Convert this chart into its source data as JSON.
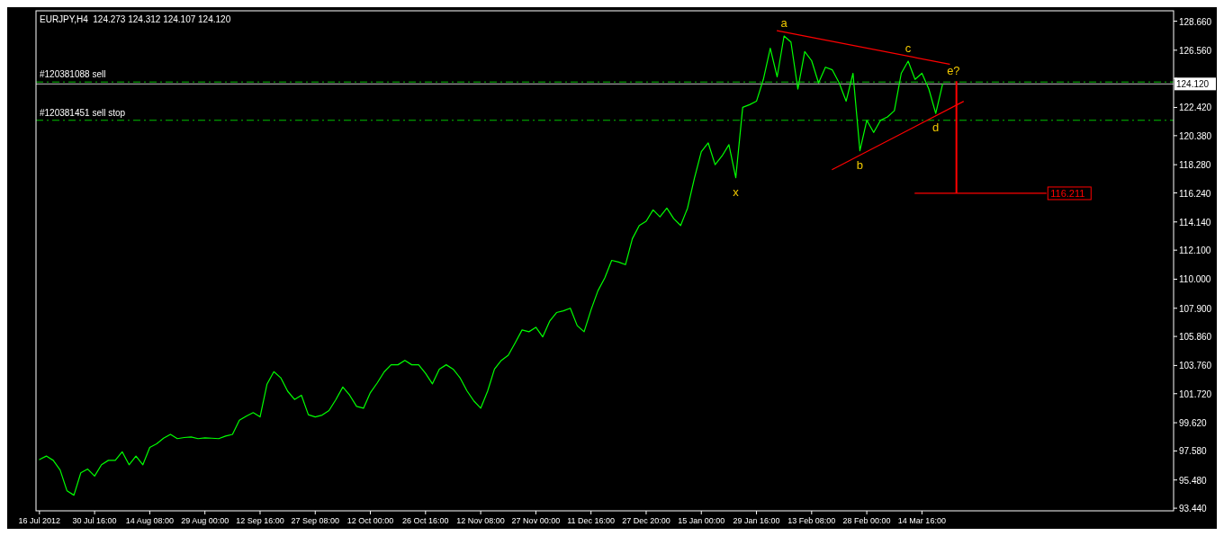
{
  "chart_data": {
    "type": "line",
    "title": "EURJPY,H4  124.273 124.312 124.107 124.120",
    "categories": [
      "16 Jul 2012",
      null,
      null,
      null,
      null,
      null,
      null,
      null,
      "30 Jul 16:00",
      null,
      null,
      null,
      null,
      null,
      null,
      null,
      "14 Aug 08:00",
      null,
      null,
      null,
      null,
      null,
      null,
      null,
      "29 Aug 00:00",
      null,
      null,
      null,
      null,
      null,
      null,
      null,
      "12 Sep 16:00",
      null,
      null,
      null,
      null,
      null,
      null,
      null,
      "27 Sep 08:00",
      null,
      null,
      null,
      null,
      null,
      null,
      null,
      "12 Oct 00:00",
      null,
      null,
      null,
      null,
      null,
      null,
      null,
      "26 Oct 16:00",
      null,
      null,
      null,
      null,
      null,
      null,
      null,
      "12 Nov 08:00",
      null,
      null,
      null,
      null,
      null,
      null,
      null,
      "27 Nov 00:00",
      null,
      null,
      null,
      null,
      null,
      null,
      null,
      "11 Dec 16:00",
      null,
      null,
      null,
      null,
      null,
      null,
      null,
      "27 Dec 20:00",
      null,
      null,
      null,
      null,
      null,
      null,
      null,
      "15 Jan 00:00",
      null,
      null,
      null,
      null,
      null,
      null,
      null,
      "29 Jan 16:00",
      null,
      null,
      null,
      null,
      null,
      null,
      null,
      "13 Feb 08:00",
      null,
      null,
      null,
      null,
      null,
      null,
      null,
      "28 Feb 00:00",
      null,
      null,
      null,
      null,
      null,
      null,
      null,
      "14 Mar 16:00",
      null,
      null,
      null,
      null,
      null,
      null,
      null,
      null,
      null,
      null,
      null,
      null,
      null,
      null,
      null,
      null,
      null,
      null,
      null,
      null,
      null,
      null,
      null,
      null,
      null,
      null,
      null,
      null,
      null,
      null,
      null,
      null,
      null,
      null,
      null,
      null
    ],
    "ylim": [
      93.25,
      129.41
    ],
    "yticks": [
      {
        "value": 93.44,
        "label": "93.440"
      },
      {
        "value": 95.48,
        "label": "95.480"
      },
      {
        "value": 97.58,
        "label": "97.580"
      },
      {
        "value": 99.62,
        "label": "99.620"
      },
      {
        "value": 101.72,
        "label": "101.720"
      },
      {
        "value": 103.76,
        "label": "103.760"
      },
      {
        "value": 105.86,
        "label": "105.860"
      },
      {
        "value": 107.9,
        "label": "107.900"
      },
      {
        "value": 110,
        "label": "110.000"
      },
      {
        "value": 112.1,
        "label": "112.100"
      },
      {
        "value": 114.14,
        "label": "114.140"
      },
      {
        "value": 116.24,
        "label": "116.240"
      },
      {
        "value": 118.28,
        "label": "118.280"
      },
      {
        "value": 120.38,
        "label": "120.380"
      },
      {
        "value": 122.42,
        "label": "122.420"
      },
      {
        "value": 124.52,
        "label": null
      },
      {
        "value": 126.56,
        "label": "126.560"
      },
      {
        "value": 128.66,
        "label": "128.660"
      }
    ],
    "series": [
      {
        "color": "#00ff00",
        "values": [
          96.96,
          97.21,
          96.9,
          96.2,
          94.69,
          94.38,
          96.0,
          96.27,
          95.76,
          96.58,
          96.9,
          96.9,
          97.52,
          96.58,
          97.21,
          96.58,
          97.84,
          98.1,
          98.5,
          98.78,
          98.47,
          98.55,
          98.59,
          98.47,
          98.53,
          98.5,
          98.47,
          98.66,
          98.78,
          99.8,
          100.1,
          100.35,
          100.04,
          102.4,
          103.31,
          102.87,
          101.9,
          101.3,
          101.61,
          100.2,
          100.04,
          100.17,
          100.5,
          101.3,
          102.2,
          101.61,
          100.8,
          100.67,
          101.8,
          102.5,
          103.3,
          103.81,
          103.81,
          104.13,
          103.81,
          103.81,
          103.19,
          102.43,
          103.5,
          103.81,
          103.5,
          102.87,
          101.93,
          101.2,
          100.67,
          101.9,
          103.5,
          104.13,
          104.5,
          105.4,
          106.33,
          106.2,
          106.52,
          105.83,
          106.96,
          107.59,
          107.71,
          107.9,
          106.64,
          106.2,
          107.78,
          109.16,
          110.1,
          111.36,
          111.24,
          111.05,
          112.93,
          113.88,
          114.19,
          115.01,
          114.51,
          115.14,
          114.38,
          113.88,
          115.14,
          117.3,
          119.22,
          119.85,
          118.28,
          118.91,
          119.73,
          117.34,
          122.43,
          122.62,
          122.87,
          124.45,
          126.71,
          124.63,
          127.59,
          127.15,
          123.75,
          126.46,
          125.8,
          124.19,
          125.33,
          125.14,
          124.19,
          122.87,
          124.89,
          119.29,
          121.49,
          120.61,
          121.49,
          121.74,
          122.18,
          124.89,
          125.77,
          124.45,
          124.89,
          123.75,
          121.99,
          124.12,
          null,
          null,
          null,
          null,
          null,
          null,
          null,
          null,
          null,
          null,
          null,
          null,
          null,
          null,
          null,
          null,
          null,
          null,
          null,
          null,
          null,
          null,
          null,
          null,
          null,
          null,
          null,
          null,
          null,
          null,
          null,
          null,
          null
        ]
      },
      {
        "type": "line",
        "color": "#ff0000",
        "values": [
          null,
          null,
          null,
          null,
          null,
          null,
          null,
          null,
          null,
          null,
          null,
          null,
          null,
          null,
          null,
          null,
          null,
          null,
          null,
          null,
          null,
          null,
          null,
          null,
          null,
          null,
          null,
          null,
          null,
          null,
          null,
          null,
          null,
          null,
          null,
          null,
          null,
          null,
          null,
          null,
          null,
          null,
          null,
          null,
          null,
          null,
          null,
          null,
          null,
          null,
          null,
          null,
          null,
          null,
          null,
          null,
          null,
          null,
          null,
          null,
          null,
          null,
          null,
          null,
          null,
          null,
          null,
          null,
          null,
          null,
          null,
          null,
          null,
          null,
          null,
          null,
          null,
          null,
          null,
          null,
          null,
          null,
          null,
          null,
          null,
          null,
          null,
          null,
          null,
          null,
          null,
          null,
          null,
          null,
          null,
          null,
          null,
          null,
          null,
          null,
          null,
          null,
          null,
          null,
          null,
          null,
          null,
          127.97,
          null,
          null,
          null,
          null,
          null,
          null,
          null,
          null,
          null,
          null,
          null,
          null,
          null,
          null,
          null,
          null,
          null,
          null,
          null,
          null,
          null,
          null,
          null,
          null,
          125.55,
          null,
          null,
          null,
          null,
          null,
          null,
          null,
          null,
          null,
          null,
          null,
          null,
          null,
          null,
          null,
          null,
          null,
          null,
          null,
          null,
          null,
          null,
          null,
          null,
          null,
          null,
          null,
          null,
          null,
          null,
          null,
          null
        ]
      },
      {
        "type": "line",
        "color": "#ff0000",
        "values": [
          null,
          null,
          null,
          null,
          null,
          null,
          null,
          null,
          null,
          null,
          null,
          null,
          null,
          null,
          null,
          null,
          null,
          null,
          null,
          null,
          null,
          null,
          null,
          null,
          null,
          null,
          null,
          null,
          null,
          null,
          null,
          null,
          null,
          null,
          null,
          null,
          null,
          null,
          null,
          null,
          null,
          null,
          null,
          null,
          null,
          null,
          null,
          null,
          null,
          null,
          null,
          null,
          null,
          null,
          null,
          null,
          null,
          null,
          null,
          null,
          null,
          null,
          null,
          null,
          null,
          null,
          null,
          null,
          null,
          null,
          null,
          null,
          null,
          null,
          null,
          null,
          null,
          null,
          null,
          null,
          null,
          null,
          null,
          null,
          null,
          null,
          null,
          null,
          null,
          null,
          null,
          null,
          null,
          null,
          null,
          null,
          null,
          null,
          null,
          null,
          null,
          null,
          null,
          null,
          null,
          null,
          null,
          null,
          null,
          null,
          null,
          null,
          null,
          null,
          null,
          117.93,
          null,
          null,
          null,
          null,
          null,
          null,
          null,
          null,
          null,
          null,
          null,
          null,
          null,
          null,
          null,
          null,
          null,
          null,
          122.85,
          null,
          null,
          null,
          null,
          null,
          null,
          null,
          null,
          null,
          null,
          null,
          null,
          null,
          null,
          null,
          null,
          null,
          null,
          null,
          null,
          null,
          null,
          null,
          null,
          null,
          null,
          null,
          null,
          null,
          null
        ]
      },
      {
        "type": "line",
        "color": "#ff0000",
        "values": [
          null,
          null,
          null,
          null,
          null,
          null,
          null,
          null,
          null,
          null,
          null,
          null,
          null,
          null,
          null,
          null,
          null,
          null,
          null,
          null,
          null,
          null,
          null,
          null,
          null,
          null,
          null,
          null,
          null,
          null,
          null,
          null,
          null,
          null,
          null,
          null,
          null,
          null,
          null,
          null,
          null,
          null,
          null,
          null,
          null,
          null,
          null,
          null,
          null,
          null,
          null,
          null,
          null,
          null,
          null,
          null,
          null,
          null,
          null,
          null,
          null,
          null,
          null,
          null,
          null,
          null,
          null,
          null,
          null,
          null,
          null,
          null,
          null,
          null,
          null,
          null,
          null,
          null,
          null,
          null,
          null,
          null,
          null,
          null,
          null,
          null,
          null,
          null,
          null,
          null,
          null,
          null,
          null,
          null,
          null,
          null,
          null,
          null,
          null,
          null,
          null,
          null,
          null,
          null,
          null,
          null,
          null,
          null,
          null,
          null,
          null,
          null,
          null,
          null,
          null,
          null,
          null,
          null,
          null,
          null,
          null,
          null,
          null,
          null,
          null,
          null,
          null,
          116.211,
          null,
          null,
          null,
          null,
          null,
          null,
          null,
          null,
          null,
          null,
          null,
          null,
          null,
          null,
          null,
          null,
          null,
          null,
          116.211,
          null,
          null,
          null,
          null,
          null,
          null,
          null,
          null,
          null,
          null,
          null,
          null,
          null,
          null,
          null,
          null,
          null,
          null
        ],
        "value_labels": [
          null,
          null,
          null,
          null,
          null,
          null,
          null,
          null,
          null,
          null,
          null,
          null,
          null,
          null,
          null,
          null,
          null,
          null,
          null,
          null,
          null,
          null,
          null,
          null,
          null,
          null,
          null,
          null,
          null,
          null,
          null,
          null,
          null,
          null,
          null,
          null,
          null,
          null,
          null,
          null,
          null,
          null,
          null,
          null,
          null,
          null,
          null,
          null,
          null,
          null,
          null,
          null,
          null,
          null,
          null,
          null,
          null,
          null,
          null,
          null,
          null,
          null,
          null,
          null,
          null,
          null,
          null,
          null,
          null,
          null,
          null,
          null,
          null,
          null,
          null,
          null,
          null,
          null,
          null,
          null,
          null,
          null,
          null,
          null,
          null,
          null,
          null,
          null,
          null,
          null,
          null,
          null,
          null,
          null,
          null,
          null,
          null,
          null,
          null,
          null,
          null,
          null,
          null,
          null,
          null,
          null,
          null,
          null,
          null,
          null,
          null,
          null,
          null,
          null,
          null,
          null,
          null,
          null,
          null,
          null,
          null,
          null,
          null,
          null,
          null,
          null,
          null,
          null,
          null,
          null,
          null,
          null,
          null,
          null,
          null,
          null,
          null,
          null,
          null,
          null,
          null,
          null,
          null,
          null,
          null,
          null,
          "116.211",
          null,
          null,
          null,
          null,
          null,
          null,
          null,
          null,
          null,
          null,
          null,
          null,
          null,
          null,
          null,
          null,
          null,
          null
        ]
      },
      {
        "type": "bar",
        "color": "#ff0000",
        "values": [
          null,
          null,
          null,
          null,
          null,
          null,
          null,
          null,
          null,
          null,
          null,
          null,
          null,
          null,
          null,
          null,
          null,
          null,
          null,
          null,
          null,
          null,
          null,
          null,
          null,
          null,
          null,
          null,
          null,
          null,
          null,
          null,
          null,
          null,
          null,
          null,
          null,
          null,
          null,
          null,
          null,
          null,
          null,
          null,
          null,
          null,
          null,
          null,
          null,
          null,
          null,
          null,
          null,
          null,
          null,
          null,
          null,
          null,
          null,
          null,
          null,
          null,
          null,
          null,
          null,
          null,
          null,
          null,
          null,
          null,
          null,
          null,
          null,
          null,
          null,
          null,
          null,
          null,
          null,
          null,
          null,
          null,
          null,
          null,
          null,
          null,
          null,
          null,
          null,
          null,
          null,
          null,
          null,
          null,
          null,
          null,
          null,
          null,
          null,
          null,
          null,
          null,
          null,
          null,
          null,
          null,
          null,
          null,
          null,
          null,
          null,
          null,
          null,
          null,
          null,
          null,
          null,
          null,
          null,
          null,
          null,
          null,
          null,
          null,
          null,
          null,
          null,
          null,
          null,
          null,
          null,
          null,
          null,
          8.11,
          null,
          null,
          null,
          null,
          null,
          null,
          null,
          null,
          null,
          null,
          null,
          null,
          null,
          null,
          null,
          null,
          null,
          null,
          null,
          null,
          null,
          null,
          null,
          null,
          null,
          null,
          null,
          null,
          null,
          null,
          null
        ],
        "base": [
          null,
          null,
          null,
          null,
          null,
          null,
          null,
          null,
          null,
          null,
          null,
          null,
          null,
          null,
          null,
          null,
          null,
          null,
          null,
          null,
          null,
          null,
          null,
          null,
          null,
          null,
          null,
          null,
          null,
          null,
          null,
          null,
          null,
          null,
          null,
          null,
          null,
          null,
          null,
          null,
          null,
          null,
          null,
          null,
          null,
          null,
          null,
          null,
          null,
          null,
          null,
          null,
          null,
          null,
          null,
          null,
          null,
          null,
          null,
          null,
          null,
          null,
          null,
          null,
          null,
          null,
          null,
          null,
          null,
          null,
          null,
          null,
          null,
          null,
          null,
          null,
          null,
          null,
          null,
          null,
          null,
          null,
          null,
          null,
          null,
          null,
          null,
          null,
          null,
          null,
          null,
          null,
          null,
          null,
          null,
          null,
          null,
          null,
          null,
          null,
          null,
          null,
          null,
          null,
          null,
          null,
          null,
          null,
          null,
          null,
          null,
          null,
          null,
          null,
          null,
          null,
          null,
          null,
          null,
          null,
          null,
          null,
          null,
          null,
          null,
          null,
          null,
          null,
          null,
          null,
          null,
          null,
          null,
          116.211,
          null,
          null,
          null,
          null,
          null,
          null,
          null,
          null,
          null,
          null,
          null,
          null,
          null,
          null,
          null,
          null,
          null,
          null,
          null,
          null,
          null,
          null,
          null,
          null,
          null,
          null,
          null,
          null,
          null,
          null,
          null
        ]
      }
    ],
    "ref_lines": [
      {
        "axis": "y",
        "value": 124.26,
        "label": "#120381088 sell",
        "color": "#00c000",
        "line_style": "dashed"
      },
      {
        "axis": "y",
        "value": 121.49,
        "label": "#120381451 sell stop",
        "color": "#00c000",
        "line_style": "dashed"
      },
      {
        "axis": "y",
        "value": 124.12,
        "label": "124.120",
        "color": "#c0c0c0",
        "line_style": "solid"
      }
    ],
    "annotations": [
      {
        "text": "a",
        "y": 127.59
      },
      {
        "text": "b",
        "y": 119.29
      },
      {
        "text": "c",
        "y": 125.77
      },
      {
        "text": "d",
        "y": 121.99
      },
      {
        "text": "e?",
        "y": 124.12
      },
      {
        "text": "x",
        "y": 117.34
      }
    ]
  }
}
